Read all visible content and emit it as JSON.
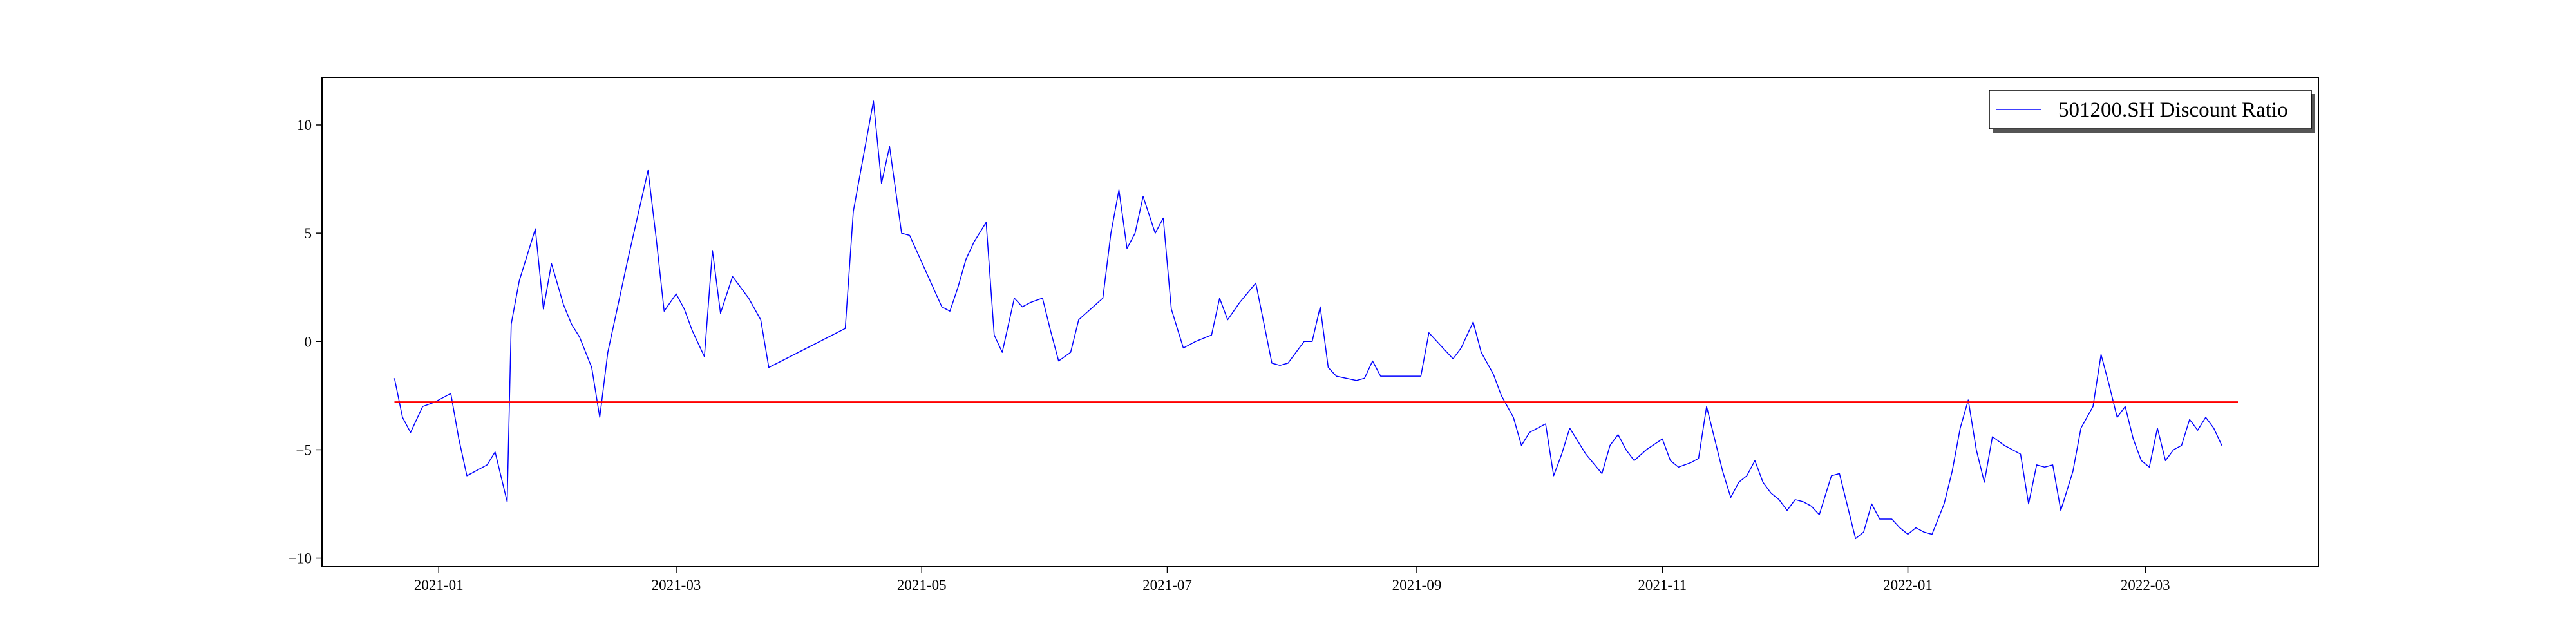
{
  "chart_data": {
    "type": "line",
    "title": "",
    "xlabel": "",
    "ylabel": "",
    "xlim": [
      "2020-12-03",
      "2022-04-13"
    ],
    "ylim": [
      -10.4,
      12.2
    ],
    "grid": false,
    "legend_position": "top-right",
    "x_ticks": [
      "2021-01",
      "2021-03",
      "2021-05",
      "2021-07",
      "2021-09",
      "2021-11",
      "2022-01",
      "2022-03"
    ],
    "y_ticks": [
      -10,
      -5,
      0,
      5,
      10
    ],
    "series": [
      {
        "name": "501200.SH Discount Ratio",
        "color": "#0000ff",
        "points": [
          [
            "2020-12-21",
            -1.7
          ],
          [
            "2020-12-23",
            -3.5
          ],
          [
            "2020-12-25",
            -4.2
          ],
          [
            "2020-12-28",
            -3.0
          ],
          [
            "2020-12-31",
            -2.8
          ],
          [
            "2021-01-04",
            -2.4
          ],
          [
            "2021-01-06",
            -4.5
          ],
          [
            "2021-01-08",
            -6.2
          ],
          [
            "2021-01-13",
            -5.7
          ],
          [
            "2021-01-15",
            -5.1
          ],
          [
            "2021-01-18",
            -7.4
          ],
          [
            "2021-01-19",
            0.8
          ],
          [
            "2021-01-21",
            2.8
          ],
          [
            "2021-01-25",
            5.2
          ],
          [
            "2021-01-27",
            1.5
          ],
          [
            "2021-01-29",
            3.6
          ],
          [
            "2021-02-01",
            1.7
          ],
          [
            "2021-02-03",
            0.8
          ],
          [
            "2021-02-05",
            0.2
          ],
          [
            "2021-02-08",
            -1.2
          ],
          [
            "2021-02-10",
            -3.5
          ],
          [
            "2021-02-12",
            -0.5
          ],
          [
            "2021-02-17",
            3.8
          ],
          [
            "2021-02-22",
            7.9
          ],
          [
            "2021-02-24",
            4.8
          ],
          [
            "2021-02-26",
            1.4
          ],
          [
            "2021-03-01",
            2.2
          ],
          [
            "2021-03-03",
            1.5
          ],
          [
            "2021-03-05",
            0.5
          ],
          [
            "2021-03-08",
            -0.7
          ],
          [
            "2021-03-10",
            4.2
          ],
          [
            "2021-03-12",
            1.3
          ],
          [
            "2021-03-15",
            3.0
          ],
          [
            "2021-03-17",
            2.5
          ],
          [
            "2021-03-19",
            2.0
          ],
          [
            "2021-03-22",
            1.0
          ],
          [
            "2021-03-24",
            -1.2
          ],
          [
            "2021-04-12",
            0.6
          ],
          [
            "2021-04-14",
            6.0
          ],
          [
            "2021-04-19",
            11.1
          ],
          [
            "2021-04-21",
            7.3
          ],
          [
            "2021-04-23",
            9.0
          ],
          [
            "2021-04-26",
            5.0
          ],
          [
            "2021-04-28",
            4.9
          ],
          [
            "2021-05-06",
            1.6
          ],
          [
            "2021-05-08",
            1.4
          ],
          [
            "2021-05-10",
            2.5
          ],
          [
            "2021-05-12",
            3.8
          ],
          [
            "2021-05-14",
            4.6
          ],
          [
            "2021-05-17",
            5.5
          ],
          [
            "2021-05-19",
            0.3
          ],
          [
            "2021-05-21",
            -0.5
          ],
          [
            "2021-05-24",
            2.0
          ],
          [
            "2021-05-26",
            1.6
          ],
          [
            "2021-05-28",
            1.8
          ],
          [
            "2021-05-31",
            2.0
          ],
          [
            "2021-06-02",
            0.5
          ],
          [
            "2021-06-04",
            -0.9
          ],
          [
            "2021-06-07",
            -0.5
          ],
          [
            "2021-06-09",
            1.0
          ],
          [
            "2021-06-15",
            2.0
          ],
          [
            "2021-06-17",
            5.0
          ],
          [
            "2021-06-19",
            7.0
          ],
          [
            "2021-06-21",
            4.3
          ],
          [
            "2021-06-23",
            5.0
          ],
          [
            "2021-06-25",
            6.7
          ],
          [
            "2021-06-28",
            5.0
          ],
          [
            "2021-06-30",
            5.7
          ],
          [
            "2021-07-02",
            1.5
          ],
          [
            "2021-07-05",
            -0.3
          ],
          [
            "2021-07-08",
            0.0
          ],
          [
            "2021-07-12",
            0.3
          ],
          [
            "2021-07-14",
            2.0
          ],
          [
            "2021-07-16",
            1.0
          ],
          [
            "2021-07-19",
            1.8
          ],
          [
            "2021-07-23",
            2.7
          ],
          [
            "2021-07-27",
            -1.0
          ],
          [
            "2021-07-29",
            -1.1
          ],
          [
            "2021-07-31",
            -1.0
          ],
          [
            "2021-08-02",
            -0.5
          ],
          [
            "2021-08-04",
            0.0
          ],
          [
            "2021-08-06",
            0.0
          ],
          [
            "2021-08-08",
            1.6
          ],
          [
            "2021-08-10",
            -1.2
          ],
          [
            "2021-08-12",
            -1.6
          ],
          [
            "2021-08-17",
            -1.8
          ],
          [
            "2021-08-19",
            -1.7
          ],
          [
            "2021-08-21",
            -0.9
          ],
          [
            "2021-08-23",
            -1.6
          ],
          [
            "2021-09-02",
            -1.6
          ],
          [
            "2021-09-04",
            0.4
          ],
          [
            "2021-09-08",
            -0.4
          ],
          [
            "2021-09-10",
            -0.8
          ],
          [
            "2021-09-12",
            -0.3
          ],
          [
            "2021-09-15",
            0.9
          ],
          [
            "2021-09-17",
            -0.5
          ],
          [
            "2021-09-20",
            -1.5
          ],
          [
            "2021-09-22",
            -2.5
          ],
          [
            "2021-09-25",
            -3.5
          ],
          [
            "2021-09-27",
            -4.8
          ],
          [
            "2021-09-29",
            -4.2
          ],
          [
            "2021-10-03",
            -3.8
          ],
          [
            "2021-10-05",
            -6.2
          ],
          [
            "2021-10-07",
            -5.2
          ],
          [
            "2021-10-09",
            -4.0
          ],
          [
            "2021-10-13",
            -5.2
          ],
          [
            "2021-10-17",
            -6.1
          ],
          [
            "2021-10-19",
            -4.8
          ],
          [
            "2021-10-21",
            -4.3
          ],
          [
            "2021-10-23",
            -5.0
          ],
          [
            "2021-10-25",
            -5.5
          ],
          [
            "2021-10-28",
            -5.0
          ],
          [
            "2021-11-01",
            -4.5
          ],
          [
            "2021-11-03",
            -5.5
          ],
          [
            "2021-11-05",
            -5.8
          ],
          [
            "2021-11-08",
            -5.6
          ],
          [
            "2021-11-10",
            -5.4
          ],
          [
            "2021-11-12",
            -3.0
          ],
          [
            "2021-11-14",
            -4.5
          ],
          [
            "2021-11-16",
            -6.0
          ],
          [
            "2021-11-18",
            -7.2
          ],
          [
            "2021-11-20",
            -6.5
          ],
          [
            "2021-11-22",
            -6.2
          ],
          [
            "2021-11-24",
            -5.5
          ],
          [
            "2021-11-26",
            -6.5
          ],
          [
            "2021-11-28",
            -7.0
          ],
          [
            "2021-11-30",
            -7.3
          ],
          [
            "2021-12-02",
            -7.8
          ],
          [
            "2021-12-04",
            -7.3
          ],
          [
            "2021-12-06",
            -7.4
          ],
          [
            "2021-12-08",
            -7.6
          ],
          [
            "2021-12-10",
            -8.0
          ],
          [
            "2021-12-13",
            -6.2
          ],
          [
            "2021-12-15",
            -6.1
          ],
          [
            "2021-12-17",
            -7.6
          ],
          [
            "2021-12-19",
            -9.1
          ],
          [
            "2021-12-21",
            -8.8
          ],
          [
            "2021-12-23",
            -7.5
          ],
          [
            "2021-12-25",
            -8.2
          ],
          [
            "2021-12-28",
            -8.2
          ],
          [
            "2021-12-30",
            -8.6
          ],
          [
            "2022-01-01",
            -8.9
          ],
          [
            "2022-01-03",
            -8.6
          ],
          [
            "2022-01-05",
            -8.8
          ],
          [
            "2022-01-07",
            -8.9
          ],
          [
            "2022-01-10",
            -7.5
          ],
          [
            "2022-01-12",
            -6.0
          ],
          [
            "2022-01-14",
            -4.0
          ],
          [
            "2022-01-16",
            -2.7
          ],
          [
            "2022-01-18",
            -5.0
          ],
          [
            "2022-01-20",
            -6.5
          ],
          [
            "2022-01-22",
            -4.4
          ],
          [
            "2022-01-25",
            -4.8
          ],
          [
            "2022-01-27",
            -5.0
          ],
          [
            "2022-01-29",
            -5.2
          ],
          [
            "2022-01-31",
            -7.5
          ],
          [
            "2022-02-02",
            -5.7
          ],
          [
            "2022-02-04",
            -5.8
          ],
          [
            "2022-02-06",
            -5.7
          ],
          [
            "2022-02-08",
            -7.8
          ],
          [
            "2022-02-11",
            -6.0
          ],
          [
            "2022-02-13",
            -4.0
          ],
          [
            "2022-02-16",
            -3.0
          ],
          [
            "2022-02-18",
            -0.6
          ],
          [
            "2022-02-20",
            -2.0
          ],
          [
            "2022-02-22",
            -3.5
          ],
          [
            "2022-02-24",
            -3.0
          ],
          [
            "2022-02-26",
            -4.5
          ],
          [
            "2022-02-28",
            -5.5
          ],
          [
            "2022-03-02",
            -5.8
          ],
          [
            "2022-03-04",
            -4.0
          ],
          [
            "2022-03-06",
            -5.5
          ],
          [
            "2022-03-08",
            -5.0
          ],
          [
            "2022-03-10",
            -4.8
          ],
          [
            "2022-03-12",
            -3.6
          ],
          [
            "2022-03-14",
            -4.1
          ],
          [
            "2022-03-16",
            -3.5
          ],
          [
            "2022-03-18",
            -4.0
          ],
          [
            "2022-03-20",
            -4.8
          ]
        ]
      },
      {
        "name": "",
        "color": "#ff0000",
        "points": [
          [
            "2020-12-21",
            -2.8
          ],
          [
            "2022-03-24",
            -2.8
          ]
        ]
      }
    ]
  }
}
